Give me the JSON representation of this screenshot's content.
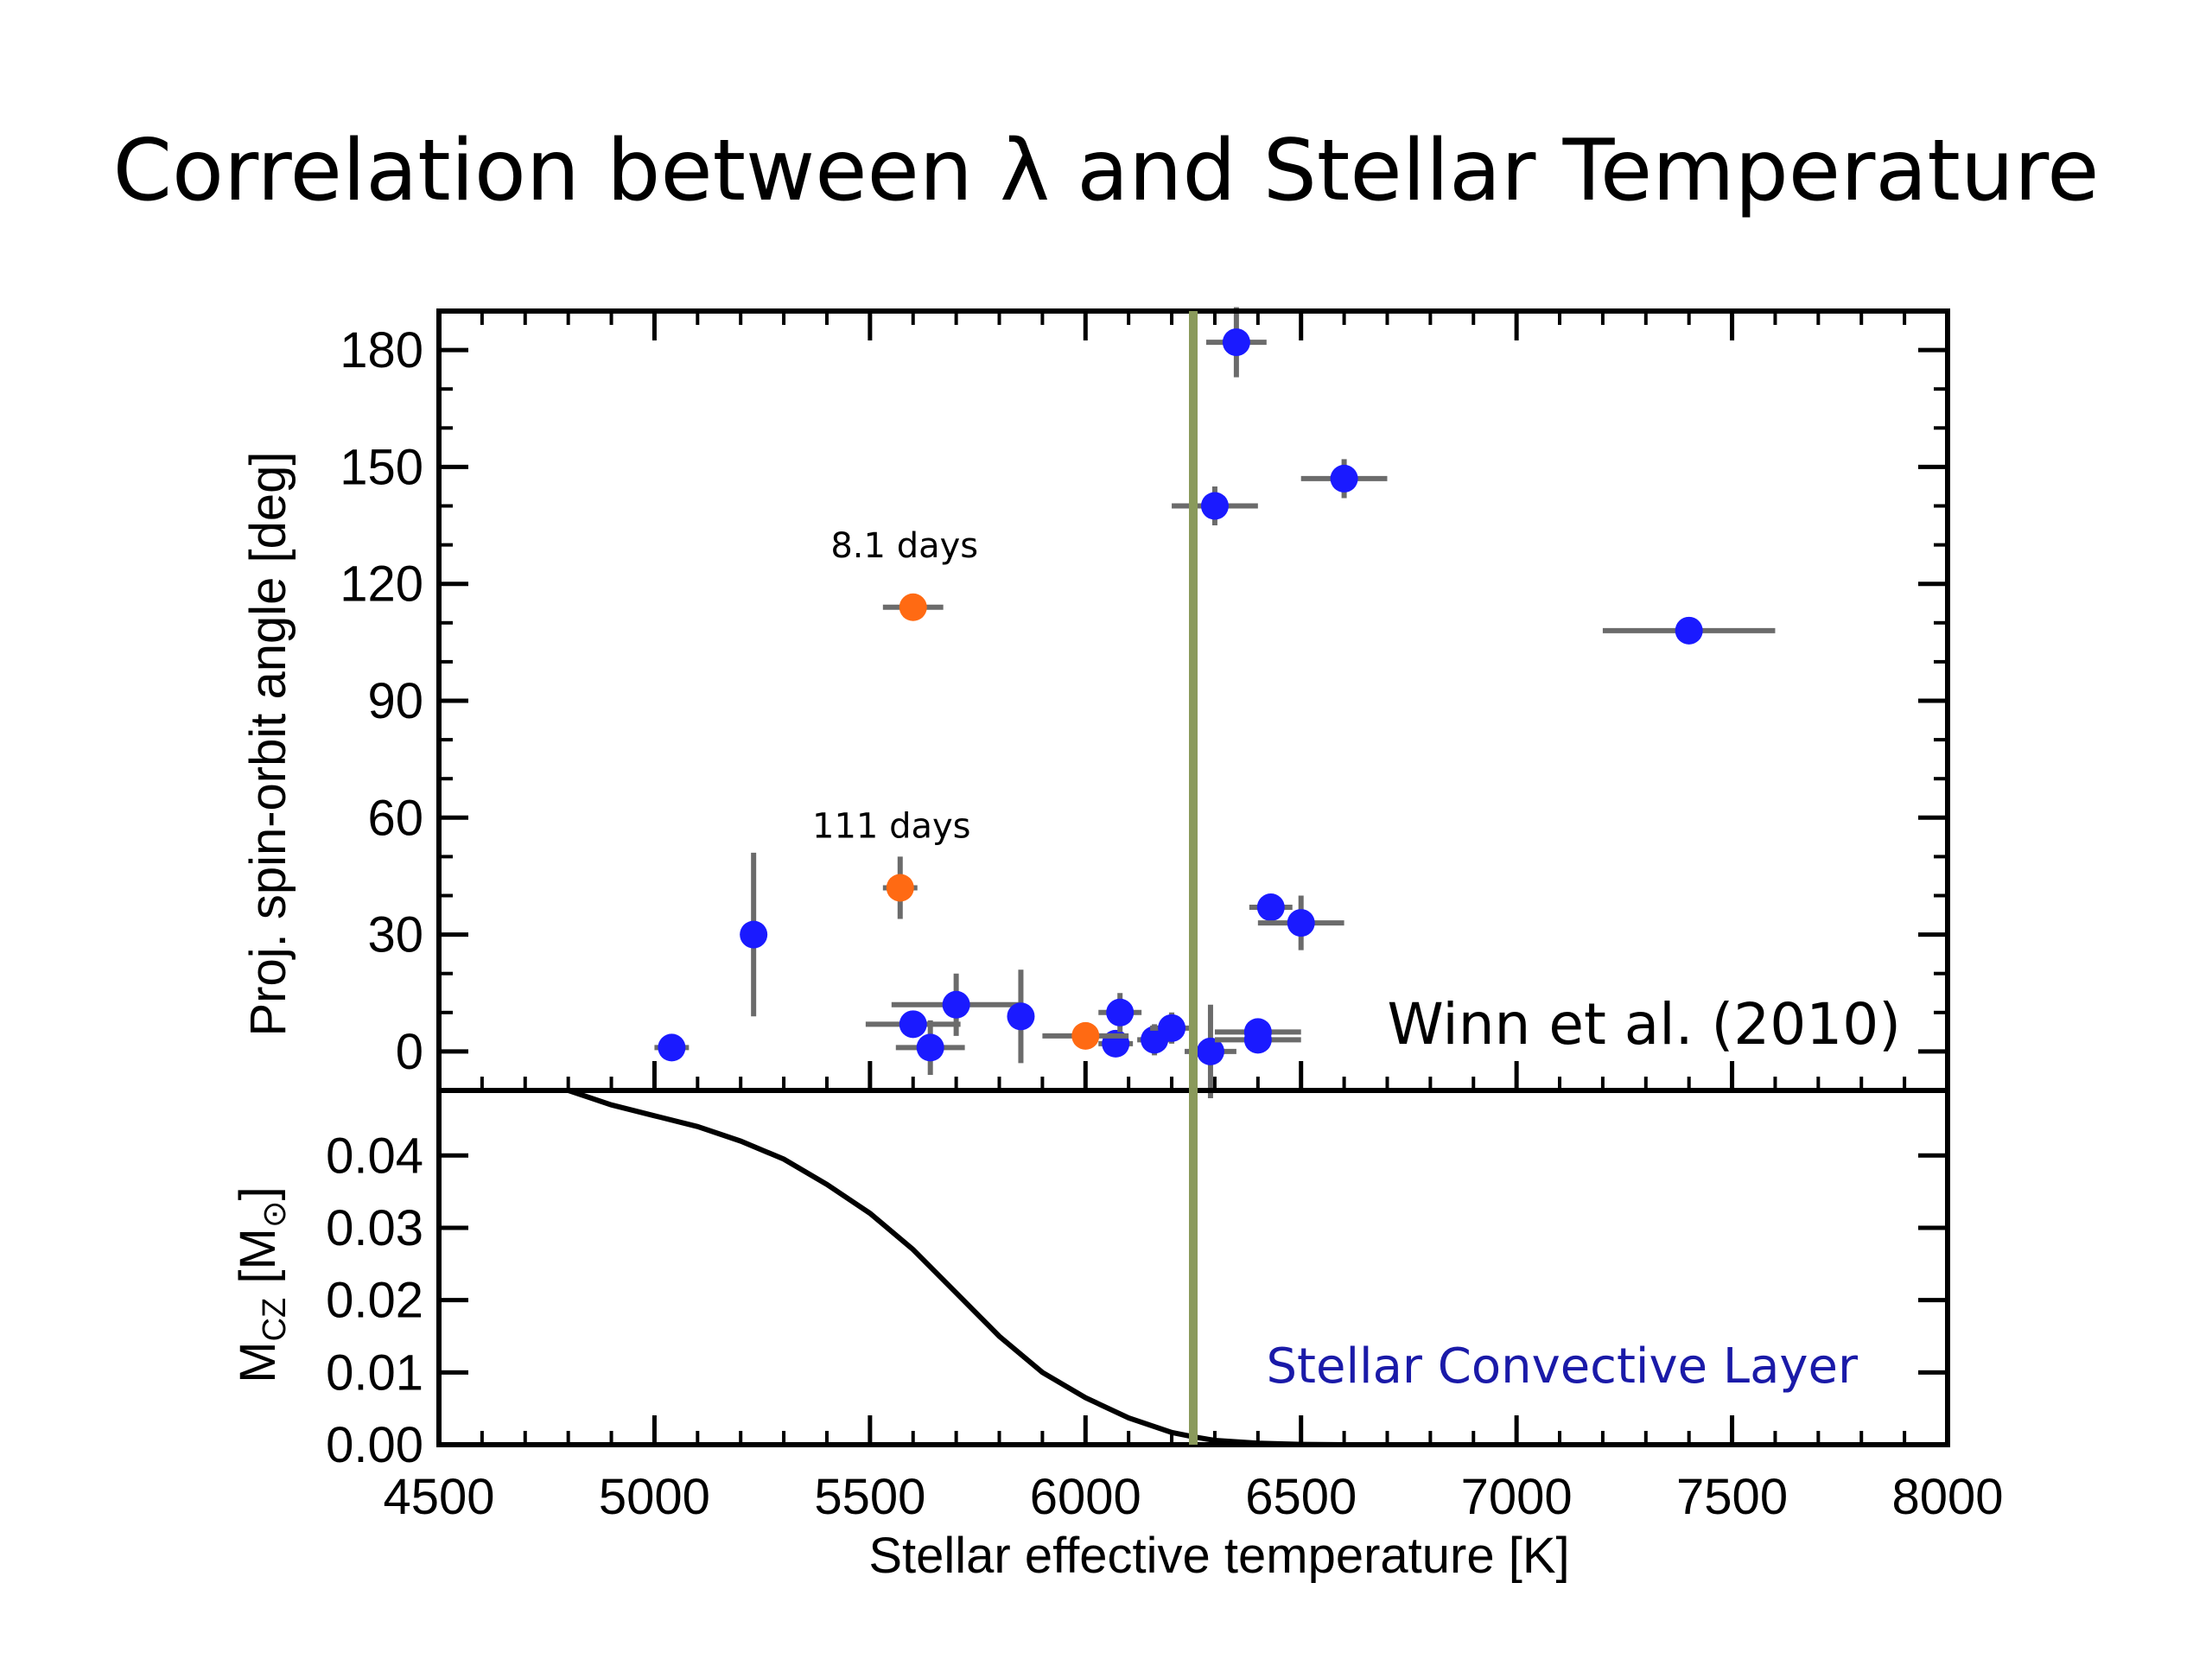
{
  "slide": {
    "title": "Correlation between λ and Stellar Temperature"
  },
  "chart_data": [
    {
      "panel": "top",
      "type": "scatter",
      "ylabel": "Proj. spin-orbit angle [deg]",
      "xlim": [
        4500,
        8000
      ],
      "ylim": [
        -10,
        190
      ],
      "yticks": [
        "0",
        "30",
        "60",
        "90",
        "120",
        "150",
        "180"
      ],
      "grid": false,
      "reference_line": {
        "x": 6250,
        "color": "#8a9a5b"
      },
      "annotation": "Winn et al. (2010)",
      "series": [
        {
          "color": "#1a1aff",
          "points": [
            {
              "x": 5040,
              "y": 1,
              "xerr": 40,
              "yerr": 0
            },
            {
              "x": 5230,
              "y": 30,
              "xerr": 30,
              "yerr": 21
            },
            {
              "x": 5600,
              "y": 7,
              "xerr": 110,
              "yerr": 0
            },
            {
              "x": 5640,
              "y": 1,
              "xerr": 80,
              "yerr": 7
            },
            {
              "x": 5700,
              "y": 12,
              "xerr": 150,
              "yerr": 8
            },
            {
              "x": 5850,
              "y": 9,
              "xerr": 30,
              "yerr": 12
            },
            {
              "x": 6070,
              "y": 2,
              "xerr": 40,
              "yerr": 3
            },
            {
              "x": 6080,
              "y": 10,
              "xerr": 50,
              "yerr": 5
            },
            {
              "x": 6160,
              "y": 3,
              "xerr": 40,
              "yerr": 4
            },
            {
              "x": 6200,
              "y": 6,
              "xerr": 50,
              "yerr": 4
            },
            {
              "x": 6290,
              "y": 0,
              "xerr": 60,
              "yerr": 12
            },
            {
              "x": 6300,
              "y": 140,
              "xerr": 100,
              "yerr": 5
            },
            {
              "x": 6350,
              "y": 182,
              "xerr": 70,
              "yerr": 9
            },
            {
              "x": 6400,
              "y": 5,
              "xerr": 100,
              "yerr": 0
            },
            {
              "x": 6400,
              "y": 3,
              "xerr": 100,
              "yerr": 0
            },
            {
              "x": 6430,
              "y": 37,
              "xerr": 50,
              "yerr": 0
            },
            {
              "x": 6500,
              "y": 33,
              "xerr": 100,
              "yerr": 7
            },
            {
              "x": 6600,
              "y": 147,
              "xerr": 100,
              "yerr": 5
            },
            {
              "x": 7400,
              "y": 108,
              "xerr": 200,
              "yerr": 0
            }
          ]
        },
        {
          "color": "#ff6a13",
          "points": [
            {
              "x": 5600,
              "y": 114,
              "xerr": 70,
              "yerr": 0,
              "label": "8.1 days"
            },
            {
              "x": 5570,
              "y": 42,
              "xerr": 40,
              "yerr": 8,
              "label": "111 days"
            },
            {
              "x": 6000,
              "y": 4,
              "xerr": 100,
              "yerr": 0
            }
          ]
        }
      ]
    },
    {
      "panel": "bottom",
      "type": "line",
      "xlabel": "Stellar effective temperature [K]",
      "ylabel_main": "M",
      "ylabel_sub": "CZ",
      "ylabel_unit_open": "[M",
      "ylabel_unit_close": "]",
      "ylabel_unit_symbol": "⊙",
      "xlim": [
        4500,
        8000
      ],
      "ylim": [
        0,
        0.049
      ],
      "yticks": [
        "0.00",
        "0.01",
        "0.02",
        "0.03",
        "0.04"
      ],
      "xticks": [
        "4500",
        "5000",
        "5500",
        "6000",
        "6500",
        "7000",
        "7500",
        "8000"
      ],
      "annotation": "Stellar Convective Layer",
      "annotation_color": "#1a1aa8",
      "series": [
        {
          "color": "#000000",
          "x": [
            4800,
            4900,
            5000,
            5100,
            5200,
            5300,
            5400,
            5500,
            5600,
            5700,
            5800,
            5900,
            6000,
            6100,
            6200,
            6250,
            6300,
            6400,
            6500,
            6600,
            6700
          ],
          "y": [
            0.049,
            0.047,
            0.0455,
            0.044,
            0.042,
            0.0395,
            0.036,
            0.032,
            0.027,
            0.021,
            0.015,
            0.01,
            0.0065,
            0.0037,
            0.0017,
            0.0011,
            0.0006,
            0.0002,
            5e-05,
            0.0,
            0.0
          ]
        }
      ]
    }
  ]
}
